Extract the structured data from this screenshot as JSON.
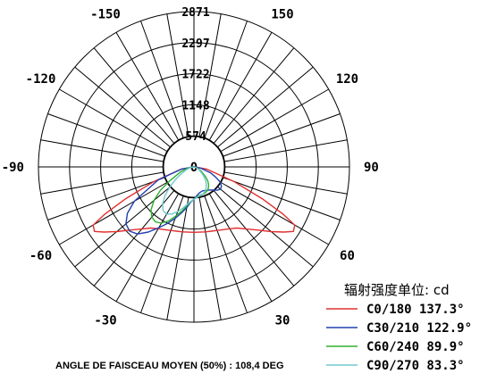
{
  "chart_data": {
    "type": "polar",
    "unit_label": "辐射强度单位: cd",
    "radial_ticks": [
      "574",
      "1148",
      "1722",
      "2297",
      "2871"
    ],
    "radial_max": 2871,
    "angle_ticks": [
      {
        "angle": -150,
        "label": "-150"
      },
      {
        "angle": -120,
        "label": "-120"
      },
      {
        "angle": -90,
        "label": "-90"
      },
      {
        "angle": -60,
        "label": "-60"
      },
      {
        "angle": -30,
        "label": "-30"
      },
      {
        "angle": 0,
        "label": "0"
      },
      {
        "angle": 30,
        "label": "30"
      },
      {
        "angle": 60,
        "label": "60"
      },
      {
        "angle": 90,
        "label": "90"
      },
      {
        "angle": 120,
        "label": "120"
      },
      {
        "angle": 150,
        "label": "150"
      }
    ],
    "series": [
      {
        "name": "C0/180",
        "label": "C0/180 137.3°",
        "color": "#e03030",
        "points": [
          [
            -90,
            0
          ],
          [
            -80,
            240
          ],
          [
            -70,
            780
          ],
          [
            -65,
            1390
          ],
          [
            -62,
            1870
          ],
          [
            -60,
            2150
          ],
          [
            -57,
            2190
          ],
          [
            -54,
            2050
          ],
          [
            -50,
            1860
          ],
          [
            -45,
            1650
          ],
          [
            -40,
            1500
          ],
          [
            -35,
            1380
          ],
          [
            -30,
            1320
          ],
          [
            -25,
            1280
          ],
          [
            -20,
            1250
          ],
          [
            -15,
            1230
          ],
          [
            -10,
            1220
          ],
          [
            0,
            1210
          ],
          [
            10,
            1220
          ],
          [
            15,
            1230
          ],
          [
            20,
            1250
          ],
          [
            25,
            1280
          ],
          [
            30,
            1320
          ],
          [
            35,
            1380
          ],
          [
            40,
            1500
          ],
          [
            45,
            1650
          ],
          [
            50,
            1860
          ],
          [
            54,
            2050
          ],
          [
            57,
            2190
          ],
          [
            60,
            2150
          ],
          [
            62,
            1870
          ],
          [
            65,
            1390
          ],
          [
            70,
            780
          ],
          [
            80,
            240
          ],
          [
            90,
            0
          ]
        ]
      },
      {
        "name": "C30/210",
        "label": "C30/210 122.9°",
        "color": "#2040b0",
        "points": [
          [
            -90,
            0
          ],
          [
            -80,
            230
          ],
          [
            -70,
            700
          ],
          [
            -60,
            1270
          ],
          [
            -55,
            1500
          ],
          [
            -50,
            1640
          ],
          [
            -45,
            1680
          ],
          [
            -40,
            1620
          ],
          [
            -35,
            1470
          ],
          [
            -30,
            1300
          ],
          [
            -25,
            1150
          ],
          [
            -20,
            1010
          ],
          [
            -15,
            880
          ],
          [
            -10,
            760
          ],
          [
            -5,
            650
          ],
          [
            0,
            600
          ],
          [
            5,
            540
          ],
          [
            10,
            500
          ],
          [
            15,
            480
          ],
          [
            20,
            470
          ],
          [
            25,
            480
          ],
          [
            30,
            500
          ],
          [
            35,
            520
          ],
          [
            40,
            560
          ],
          [
            45,
            610
          ],
          [
            50,
            640
          ],
          [
            55,
            620
          ],
          [
            60,
            560
          ],
          [
            65,
            440
          ],
          [
            70,
            330
          ],
          [
            80,
            120
          ],
          [
            90,
            0
          ]
        ]
      },
      {
        "name": "C60/240",
        "label": "C60/240 89.9°",
        "color": "#30b030",
        "points": [
          [
            -90,
            0
          ],
          [
            -80,
            100
          ],
          [
            -70,
            260
          ],
          [
            -60,
            520
          ],
          [
            -55,
            760
          ],
          [
            -50,
            960
          ],
          [
            -45,
            1120
          ],
          [
            -40,
            1210
          ],
          [
            -35,
            1240
          ],
          [
            -30,
            1200
          ],
          [
            -25,
            1100
          ],
          [
            -20,
            960
          ],
          [
            -15,
            840
          ],
          [
            -10,
            720
          ],
          [
            -5,
            640
          ],
          [
            0,
            600
          ],
          [
            5,
            560
          ],
          [
            10,
            540
          ],
          [
            15,
            530
          ],
          [
            20,
            530
          ],
          [
            25,
            520
          ],
          [
            30,
            500
          ],
          [
            35,
            470
          ],
          [
            40,
            420
          ],
          [
            45,
            360
          ],
          [
            50,
            280
          ],
          [
            60,
            150
          ],
          [
            70,
            70
          ],
          [
            90,
            0
          ]
        ]
      },
      {
        "name": "C90/270",
        "label": "C90/270 83.3°",
        "color": "#70c8d0",
        "points": [
          [
            -90,
            0
          ],
          [
            -80,
            60
          ],
          [
            -70,
            150
          ],
          [
            -60,
            300
          ],
          [
            -55,
            430
          ],
          [
            -50,
            590
          ],
          [
            -45,
            760
          ],
          [
            -40,
            900
          ],
          [
            -35,
            990
          ],
          [
            -30,
            1010
          ],
          [
            -25,
            960
          ],
          [
            -20,
            880
          ],
          [
            -15,
            790
          ],
          [
            -10,
            700
          ],
          [
            -5,
            640
          ],
          [
            0,
            600
          ],
          [
            5,
            570
          ],
          [
            10,
            550
          ],
          [
            15,
            540
          ],
          [
            20,
            520
          ],
          [
            25,
            490
          ],
          [
            30,
            450
          ],
          [
            35,
            400
          ],
          [
            40,
            340
          ],
          [
            45,
            270
          ],
          [
            50,
            200
          ],
          [
            60,
            110
          ],
          [
            70,
            50
          ],
          [
            90,
            0
          ]
        ]
      }
    ]
  },
  "footer": "ANGLE DE FAISCEAU MOYEN (50%) : 108,4 DEG"
}
